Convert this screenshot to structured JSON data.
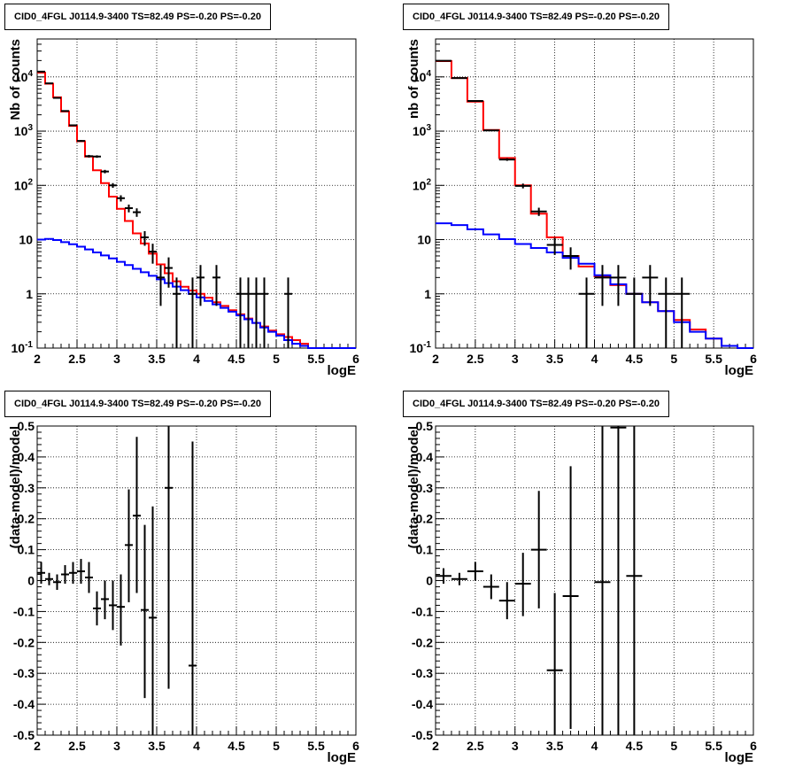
{
  "chart_data": [
    {
      "type": "line",
      "title": "CID0_4FGL J0114.9-3400 TS=82.49 PS=-0.20 PS=-0.20",
      "xlabel": "logE",
      "ylabel": "Nb of counts",
      "xlim": [
        2,
        6
      ],
      "ylim": [
        0.1,
        50000
      ],
      "yscale": "log",
      "grid": true,
      "xticks": [
        "2",
        "2.5",
        "3",
        "3.5",
        "4",
        "4.5",
        "5",
        "5.5",
        "6"
      ],
      "yticks": [
        "10^-1",
        "1",
        "10",
        "10^2",
        "10^3",
        "10^4"
      ],
      "series": [
        {
          "color": "#ff0000",
          "bin_edges": [
            2.0,
            2.1,
            2.2,
            2.3,
            2.4,
            2.5,
            2.6,
            2.7,
            2.8,
            2.9,
            3.0,
            3.1,
            3.2,
            3.3,
            3.4,
            3.5,
            3.6,
            3.7,
            3.8,
            3.9,
            4.0,
            4.1,
            4.2,
            4.3,
            4.4,
            4.5,
            4.6,
            4.7,
            4.8,
            4.9,
            5.0,
            5.1,
            5.2,
            5.3,
            5.4,
            5.5,
            5.6,
            5.7,
            5.8,
            5.9,
            6.0
          ],
          "values": [
            12000,
            7500,
            4200,
            2300,
            1250,
            650,
            340,
            190,
            110,
            62,
            37,
            22,
            13,
            8.5,
            5.5,
            3.5,
            2.4,
            1.7,
            1.35,
            1.15,
            1.0,
            0.85,
            0.7,
            0.6,
            0.5,
            0.42,
            0.35,
            0.29,
            0.25,
            0.21,
            0.18,
            0.16,
            0.14,
            0.12,
            0.1,
            0.1,
            0.1,
            0.1,
            0.1,
            0.1
          ]
        },
        {
          "color": "#0000ff",
          "bin_edges": [
            2.0,
            2.1,
            2.2,
            2.3,
            2.4,
            2.5,
            2.6,
            2.7,
            2.8,
            2.9,
            3.0,
            3.1,
            3.2,
            3.3,
            3.4,
            3.5,
            3.6,
            3.7,
            3.8,
            3.9,
            4.0,
            4.1,
            4.2,
            4.3,
            4.4,
            4.5,
            4.6,
            4.7,
            4.8,
            4.9,
            5.0,
            5.1,
            5.2,
            5.3,
            5.4,
            5.5,
            5.6,
            5.7,
            5.8,
            5.9,
            6.0
          ],
          "values": [
            10,
            10.3,
            9.8,
            9,
            8.2,
            7.4,
            6.6,
            5.8,
            5.1,
            4.5,
            3.9,
            3.4,
            2.9,
            2.5,
            2.15,
            1.85,
            1.58,
            1.36,
            1.17,
            1.0,
            0.86,
            0.74,
            0.64,
            0.55,
            0.47,
            0.4,
            0.34,
            0.29,
            0.24,
            0.2,
            0.17,
            0.14,
            0.12,
            0.11,
            0.1,
            0.1,
            0.1,
            0.1,
            0.1,
            0.1
          ]
        }
      ],
      "points": [
        {
          "x": 2.05,
          "y": 12500,
          "xerr": 0.05,
          "ylo": 12380,
          "yhi": 12620
        },
        {
          "x": 2.15,
          "y": 7600,
          "xerr": 0.05,
          "ylo": 7510,
          "yhi": 7690
        },
        {
          "x": 2.25,
          "y": 4100,
          "xerr": 0.05,
          "ylo": 4035,
          "yhi": 4165
        },
        {
          "x": 2.35,
          "y": 2350,
          "xerr": 0.05,
          "ylo": 2300,
          "yhi": 2400
        },
        {
          "x": 2.45,
          "y": 1280,
          "xerr": 0.05,
          "ylo": 1245,
          "yhi": 1315
        },
        {
          "x": 2.55,
          "y": 660,
          "xerr": 0.05,
          "ylo": 635,
          "yhi": 685
        },
        {
          "x": 2.65,
          "y": 345,
          "xerr": 0.05,
          "ylo": 326,
          "yhi": 364
        },
        {
          "x": 2.75,
          "y": 340,
          "xerr": 0.05,
          "ylo": 322,
          "yhi": 358
        },
        {
          "x": 2.85,
          "y": 180,
          "xerr": 0.05,
          "ylo": 167,
          "yhi": 193
        },
        {
          "x": 2.95,
          "y": 100,
          "xerr": 0.05,
          "ylo": 90,
          "yhi": 110
        },
        {
          "x": 3.05,
          "y": 58,
          "xerr": 0.05,
          "ylo": 50.4,
          "yhi": 65.6
        },
        {
          "x": 3.15,
          "y": 38,
          "xerr": 0.05,
          "ylo": 31.8,
          "yhi": 44.2
        },
        {
          "x": 3.25,
          "y": 32,
          "xerr": 0.05,
          "ylo": 26.3,
          "yhi": 37.7
        },
        {
          "x": 3.35,
          "y": 11,
          "xerr": 0.05,
          "ylo": 7.7,
          "yhi": 14.3
        },
        {
          "x": 3.45,
          "y": 6,
          "xerr": 0.05,
          "ylo": 3.6,
          "yhi": 8.4
        },
        {
          "x": 3.55,
          "y": 2,
          "xerr": 0.05,
          "ylo": 0.6,
          "yhi": 3.4
        },
        {
          "x": 3.65,
          "y": 3,
          "xerr": 0.05,
          "ylo": 1.3,
          "yhi": 4.7
        },
        {
          "x": 3.75,
          "y": 1,
          "xerr": 0.05,
          "ylo": 0.1,
          "yhi": 2.0
        },
        {
          "x": 3.95,
          "y": 1,
          "xerr": 0.05,
          "ylo": 0.1,
          "yhi": 2.0
        },
        {
          "x": 4.05,
          "y": 2,
          "xerr": 0.05,
          "ylo": 0.6,
          "yhi": 3.4
        },
        {
          "x": 4.25,
          "y": 2,
          "xerr": 0.05,
          "ylo": 0.6,
          "yhi": 3.4
        },
        {
          "x": 4.55,
          "y": 1,
          "xerr": 0.05,
          "ylo": 0.1,
          "yhi": 2.0
        },
        {
          "x": 4.65,
          "y": 1,
          "xerr": 0.05,
          "ylo": 0.1,
          "yhi": 2.0
        },
        {
          "x": 4.75,
          "y": 1,
          "xerr": 0.05,
          "ylo": 0.1,
          "yhi": 2.0
        },
        {
          "x": 4.85,
          "y": 1,
          "xerr": 0.05,
          "ylo": 0.1,
          "yhi": 2.0
        },
        {
          "x": 5.15,
          "y": 1,
          "xerr": 0.05,
          "ylo": 0.1,
          "yhi": 2.0
        }
      ]
    },
    {
      "type": "line",
      "title": "CID0_4FGL J0114.9-3400 TS=82.49 PS=-0.20 PS=-0.20",
      "xlabel": "logE",
      "ylabel": "nb of counts",
      "xlim": [
        2,
        6
      ],
      "ylim": [
        0.1,
        50000
      ],
      "yscale": "log",
      "grid": true,
      "xticks": [
        "2",
        "2.5",
        "3",
        "3.5",
        "4",
        "4.5",
        "5",
        "5.5",
        "6"
      ],
      "yticks": [
        "10^-1",
        "1",
        "10",
        "10^2",
        "10^3",
        "10^4"
      ],
      "series": [
        {
          "color": "#ff0000",
          "bin_edges": [
            2.0,
            2.2,
            2.4,
            2.6,
            2.8,
            3.0,
            3.2,
            3.4,
            3.6,
            3.8,
            4.0,
            4.2,
            4.4,
            4.6,
            4.8,
            5.0,
            5.2,
            5.4,
            5.6,
            5.8,
            6.0
          ],
          "values": [
            19500,
            9500,
            3500,
            1050,
            320,
            100,
            30,
            11,
            5,
            3.2,
            2.1,
            1.45,
            1.0,
            0.7,
            0.48,
            0.33,
            0.22,
            0.15,
            0.11,
            0.1
          ]
        },
        {
          "color": "#0000ff",
          "bin_edges": [
            2.0,
            2.2,
            2.4,
            2.6,
            2.8,
            3.0,
            3.2,
            3.4,
            3.6,
            3.8,
            4.0,
            4.2,
            4.4,
            4.6,
            4.8,
            5.0,
            5.2,
            5.4,
            5.6,
            5.8,
            6.0
          ],
          "values": [
            20,
            18.5,
            15.5,
            12.5,
            10.2,
            8.3,
            7.0,
            5.8,
            4.6,
            3.6,
            2.2,
            1.5,
            1.0,
            0.7,
            0.48,
            0.3,
            0.2,
            0.15,
            0.11,
            0.1
          ]
        }
      ],
      "points": [
        {
          "x": 2.1,
          "y": 19800,
          "xerr": 0.1,
          "ylo": 19660,
          "yhi": 19940
        },
        {
          "x": 2.3,
          "y": 9500,
          "xerr": 0.1,
          "ylo": 9400,
          "yhi": 9600
        },
        {
          "x": 2.5,
          "y": 3600,
          "xerr": 0.1,
          "ylo": 3540,
          "yhi": 3660
        },
        {
          "x": 2.7,
          "y": 1030,
          "xerr": 0.1,
          "ylo": 998,
          "yhi": 1062
        },
        {
          "x": 2.9,
          "y": 300,
          "xerr": 0.1,
          "ylo": 283,
          "yhi": 317
        },
        {
          "x": 3.1,
          "y": 98,
          "xerr": 0.1,
          "ylo": 88,
          "yhi": 108
        },
        {
          "x": 3.3,
          "y": 33,
          "xerr": 0.1,
          "ylo": 27.3,
          "yhi": 38.7
        },
        {
          "x": 3.5,
          "y": 8,
          "xerr": 0.1,
          "ylo": 5.2,
          "yhi": 10.8
        },
        {
          "x": 3.7,
          "y": 5,
          "xerr": 0.1,
          "ylo": 2.8,
          "yhi": 7.2
        },
        {
          "x": 3.9,
          "y": 1,
          "xerr": 0.1,
          "ylo": 0.1,
          "yhi": 2.0
        },
        {
          "x": 4.1,
          "y": 2,
          "xerr": 0.1,
          "ylo": 0.6,
          "yhi": 3.4
        },
        {
          "x": 4.3,
          "y": 2,
          "xerr": 0.1,
          "ylo": 0.6,
          "yhi": 3.4
        },
        {
          "x": 4.5,
          "y": 1,
          "xerr": 0.1,
          "ylo": 0.1,
          "yhi": 2.0
        },
        {
          "x": 4.7,
          "y": 2,
          "xerr": 0.1,
          "ylo": 0.6,
          "yhi": 3.4
        },
        {
          "x": 4.9,
          "y": 1,
          "xerr": 0.1,
          "ylo": 0.1,
          "yhi": 2.0
        },
        {
          "x": 5.1,
          "y": 1,
          "xerr": 0.1,
          "ylo": 0.1,
          "yhi": 2.0
        }
      ]
    },
    {
      "type": "scatter",
      "title": "CID0_4FGL J0114.9-3400 TS=82.49 PS=-0.20 PS=-0.20",
      "xlabel": "logE",
      "ylabel": "(data-model)/model",
      "xlim": [
        2,
        6
      ],
      "ylim": [
        -0.5,
        0.5
      ],
      "yscale": "linear",
      "grid": true,
      "xticks": [
        "2",
        "2.5",
        "3",
        "3.5",
        "4",
        "4.5",
        "5",
        "5.5",
        "6"
      ],
      "yticks": [
        "-0.5",
        "-0.4",
        "-0.3",
        "-0.2",
        "-0.1",
        "0",
        "0.1",
        "0.2",
        "0.3",
        "0.4",
        "0.5"
      ],
      "points": [
        {
          "x": 2.05,
          "y": 0.025,
          "xerr": 0.05,
          "ylo": -0.01,
          "yhi": 0.06
        },
        {
          "x": 2.15,
          "y": 0.005,
          "xerr": 0.05,
          "ylo": -0.015,
          "yhi": 0.025
        },
        {
          "x": 2.25,
          "y": -0.005,
          "xerr": 0.05,
          "ylo": -0.03,
          "yhi": 0.02
        },
        {
          "x": 2.35,
          "y": 0.02,
          "xerr": 0.05,
          "ylo": -0.01,
          "yhi": 0.05
        },
        {
          "x": 2.45,
          "y": 0.025,
          "xerr": 0.05,
          "ylo": -0.01,
          "yhi": 0.06
        },
        {
          "x": 2.55,
          "y": 0.03,
          "xerr": 0.05,
          "ylo": -0.01,
          "yhi": 0.07
        },
        {
          "x": 2.65,
          "y": 0.01,
          "xerr": 0.05,
          "ylo": -0.04,
          "yhi": 0.06
        },
        {
          "x": 2.75,
          "y": -0.09,
          "xerr": 0.05,
          "ylo": -0.145,
          "yhi": -0.035
        },
        {
          "x": 2.85,
          "y": -0.06,
          "xerr": 0.05,
          "ylo": -0.125,
          "yhi": 0.0
        },
        {
          "x": 2.95,
          "y": -0.08,
          "xerr": 0.05,
          "ylo": -0.16,
          "yhi": 0.0
        },
        {
          "x": 3.05,
          "y": -0.085,
          "xerr": 0.05,
          "ylo": -0.21,
          "yhi": 0.02
        },
        {
          "x": 3.15,
          "y": 0.115,
          "xerr": 0.05,
          "ylo": -0.07,
          "yhi": 0.295
        },
        {
          "x": 3.25,
          "y": 0.21,
          "xerr": 0.05,
          "ylo": -0.04,
          "yhi": 0.465
        },
        {
          "x": 3.35,
          "y": -0.095,
          "xerr": 0.05,
          "ylo": -0.38,
          "yhi": 0.18
        },
        {
          "x": 3.45,
          "y": -0.12,
          "xerr": 0.05,
          "ylo": -0.5,
          "yhi": 0.24
        },
        {
          "x": 3.65,
          "y": 0.3,
          "xerr": 0.05,
          "ylo": -0.35,
          "yhi": 0.5
        },
        {
          "x": 3.95,
          "y": -0.275,
          "xerr": 0.05,
          "ylo": -0.5,
          "yhi": 0.45
        }
      ]
    },
    {
      "type": "scatter",
      "title": "CID0_4FGL J0114.9-3400 TS=82.49 PS=-0.20 PS=-0.20",
      "xlabel": "logE",
      "ylabel": "(data-model)/model",
      "xlim": [
        2,
        6
      ],
      "ylim": [
        -0.5,
        0.5
      ],
      "yscale": "linear",
      "grid": true,
      "xticks": [
        "2",
        "2.5",
        "3",
        "3.5",
        "4",
        "4.5",
        "5",
        "5.5",
        "6"
      ],
      "yticks": [
        "-0.5",
        "-0.4",
        "-0.3",
        "-0.2",
        "-0.1",
        "0",
        "0.1",
        "0.2",
        "0.3",
        "0.4",
        "0.5"
      ],
      "points": [
        {
          "x": 2.1,
          "y": 0.015,
          "xerr": 0.1,
          "ylo": -0.01,
          "yhi": 0.04
        },
        {
          "x": 2.3,
          "y": 0.005,
          "xerr": 0.1,
          "ylo": -0.015,
          "yhi": 0.025
        },
        {
          "x": 2.5,
          "y": 0.03,
          "xerr": 0.1,
          "ylo": 0.0,
          "yhi": 0.06
        },
        {
          "x": 2.7,
          "y": -0.02,
          "xerr": 0.1,
          "ylo": -0.06,
          "yhi": 0.02
        },
        {
          "x": 2.9,
          "y": -0.065,
          "xerr": 0.1,
          "ylo": -0.125,
          "yhi": -0.005
        },
        {
          "x": 3.1,
          "y": -0.01,
          "xerr": 0.1,
          "ylo": -0.115,
          "yhi": 0.09
        },
        {
          "x": 3.3,
          "y": 0.1,
          "xerr": 0.1,
          "ylo": -0.09,
          "yhi": 0.29
        },
        {
          "x": 3.5,
          "y": -0.29,
          "xerr": 0.1,
          "ylo": -0.5,
          "yhi": -0.04
        },
        {
          "x": 3.7,
          "y": -0.05,
          "xerr": 0.1,
          "ylo": -0.48,
          "yhi": 0.37
        },
        {
          "x": 4.1,
          "y": -0.005,
          "xerr": 0.1,
          "ylo": -0.5,
          "yhi": 0.5
        },
        {
          "x": 4.3,
          "y": 0.495,
          "xerr": 0.1,
          "ylo": -0.5,
          "yhi": 0.5
        },
        {
          "x": 4.5,
          "y": 0.015,
          "xerr": 0.1,
          "ylo": -0.5,
          "yhi": 0.5
        }
      ]
    }
  ]
}
